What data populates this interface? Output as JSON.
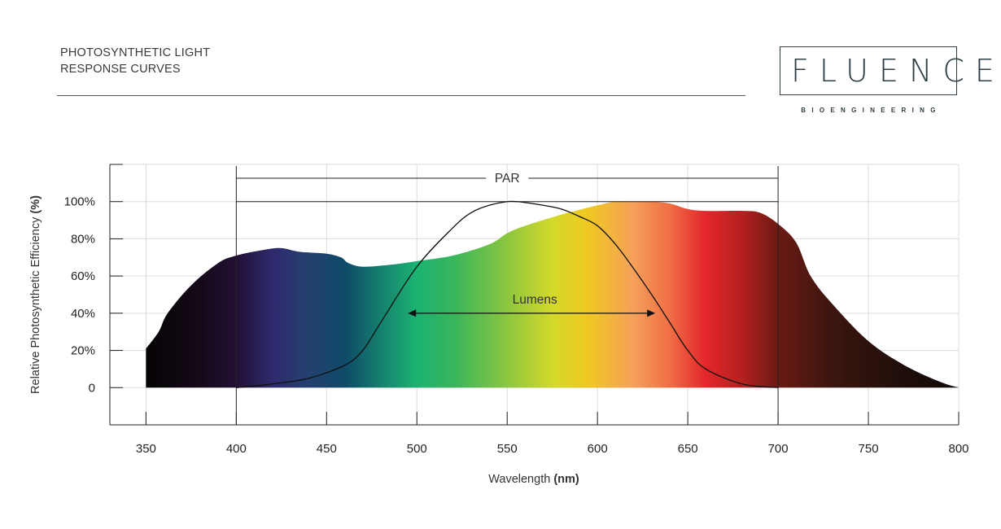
{
  "header": {
    "title_line1": "PHOTOSYNTHETIC LIGHT",
    "title_line2": "RESPONSE CURVES",
    "logo_word": "FLUENCE",
    "logo_sub": "BIOENGINEERING"
  },
  "chart_data": {
    "type": "area",
    "xlabel_main": "Wavelength ",
    "xlabel_unit": "(nm)",
    "ylabel_main": "Relative Photosynthetic Efficiency ",
    "ylabel_unit": "(%)",
    "xlim": [
      330,
      800
    ],
    "ylim": [
      -20,
      120
    ],
    "x_ticks": [
      350,
      400,
      450,
      500,
      550,
      600,
      650,
      700,
      750,
      800
    ],
    "y_ticks": [
      0,
      20,
      40,
      60,
      80,
      100
    ],
    "y_tick_labels": [
      "0",
      "20%",
      "40%",
      "60%",
      "80%",
      "100%"
    ],
    "grid": true,
    "series": [
      {
        "role": "spectrum-fill",
        "x": [
          350,
          357,
          362,
          375,
          390,
          400,
          415,
          425,
          435,
          450,
          458,
          462,
          470,
          485,
          500,
          520,
          540,
          550,
          560,
          580,
          600,
          610,
          620,
          630,
          640,
          650,
          660,
          680,
          690,
          700,
          710,
          718,
          730,
          750,
          770,
          790,
          800
        ],
        "y": [
          21,
          30,
          40,
          55,
          67,
          71,
          74,
          75,
          73,
          72,
          70,
          67,
          65,
          66,
          68,
          71,
          77,
          83,
          87,
          93,
          98,
          100,
          100,
          100,
          99,
          96,
          95,
          95,
          94,
          88,
          78,
          60,
          45,
          25,
          12,
          3,
          0
        ]
      },
      {
        "name": "Lumens",
        "role": "lumens-curve",
        "x": [
          400,
          420,
          440,
          460,
          470,
          480,
          500,
          520,
          530,
          540,
          550,
          555,
          560,
          570,
          580,
          590,
          600,
          610,
          620,
          630,
          640,
          650,
          660,
          680,
          700
        ],
        "y": [
          0,
          2,
          5,
          12,
          20,
          35,
          65,
          86,
          94,
          98,
          100,
          100,
          99.5,
          98,
          96,
          92,
          87,
          77,
          64,
          50,
          35,
          20,
          10,
          2,
          0
        ]
      }
    ],
    "spectrum_colors": [
      {
        "nm": 350,
        "color": "#050305"
      },
      {
        "nm": 380,
        "color": "#150a18"
      },
      {
        "nm": 400,
        "color": "#221035"
      },
      {
        "nm": 420,
        "color": "#2e2a6e"
      },
      {
        "nm": 440,
        "color": "#25406f"
      },
      {
        "nm": 460,
        "color": "#0e4a68"
      },
      {
        "nm": 480,
        "color": "#16806f"
      },
      {
        "nm": 500,
        "color": "#1bb371"
      },
      {
        "nm": 520,
        "color": "#38b55c"
      },
      {
        "nm": 550,
        "color": "#8cc63f"
      },
      {
        "nm": 575,
        "color": "#d3d92a"
      },
      {
        "nm": 595,
        "color": "#f0c822"
      },
      {
        "nm": 620,
        "color": "#f5a05a"
      },
      {
        "nm": 640,
        "color": "#ef6e44"
      },
      {
        "nm": 660,
        "color": "#e4262a"
      },
      {
        "nm": 680,
        "color": "#b4201f"
      },
      {
        "nm": 700,
        "color": "#6a1b13"
      },
      {
        "nm": 730,
        "color": "#3b160f"
      },
      {
        "nm": 770,
        "color": "#1e0d0a"
      },
      {
        "nm": 800,
        "color": "#120907"
      }
    ],
    "annotations": {
      "par": {
        "label": "PAR",
        "x_range": [
          400,
          700
        ],
        "y_level": 100
      },
      "lumens": {
        "label": "Lumens",
        "x_range": [
          495,
          632
        ],
        "y": 40
      }
    }
  }
}
